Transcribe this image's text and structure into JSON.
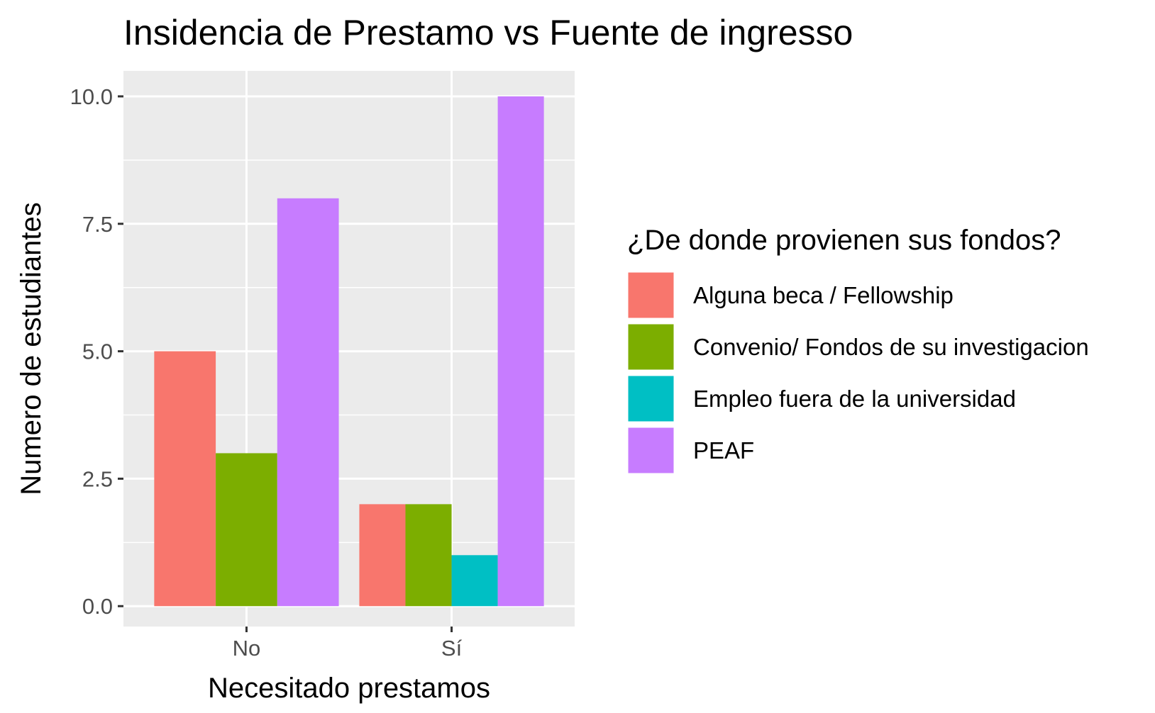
{
  "chart_data": {
    "type": "bar",
    "title": "Insidencia de Prestamo vs Fuente de ingresso",
    "xlabel": "Necesitado prestamos",
    "ylabel": "Numero de estudiantes",
    "categories": [
      "No",
      "Sí"
    ],
    "ylim": [
      -0.4,
      10.5
    ],
    "yticks": [
      "0.0",
      "2.5",
      "5.0",
      "7.5",
      "10.0"
    ],
    "ytick_values": [
      0,
      2.5,
      5,
      7.5,
      10
    ],
    "grid": true,
    "legend": {
      "title": "¿De donde provienen sus fondos?",
      "placement": "right"
    },
    "series": [
      {
        "name": "Alguna beca / Fellowship",
        "color": "#F8766D",
        "values": [
          5,
          2
        ]
      },
      {
        "name": "Convenio/ Fondos de su investigacion",
        "color": "#7CAE00",
        "values": [
          3,
          2
        ]
      },
      {
        "name": "Empleo fuera de la universidad",
        "color": "#00BFC4",
        "values": [
          0,
          1
        ]
      },
      {
        "name": "PEAF",
        "color": "#C77CFF",
        "values": [
          8,
          10
        ]
      }
    ]
  }
}
